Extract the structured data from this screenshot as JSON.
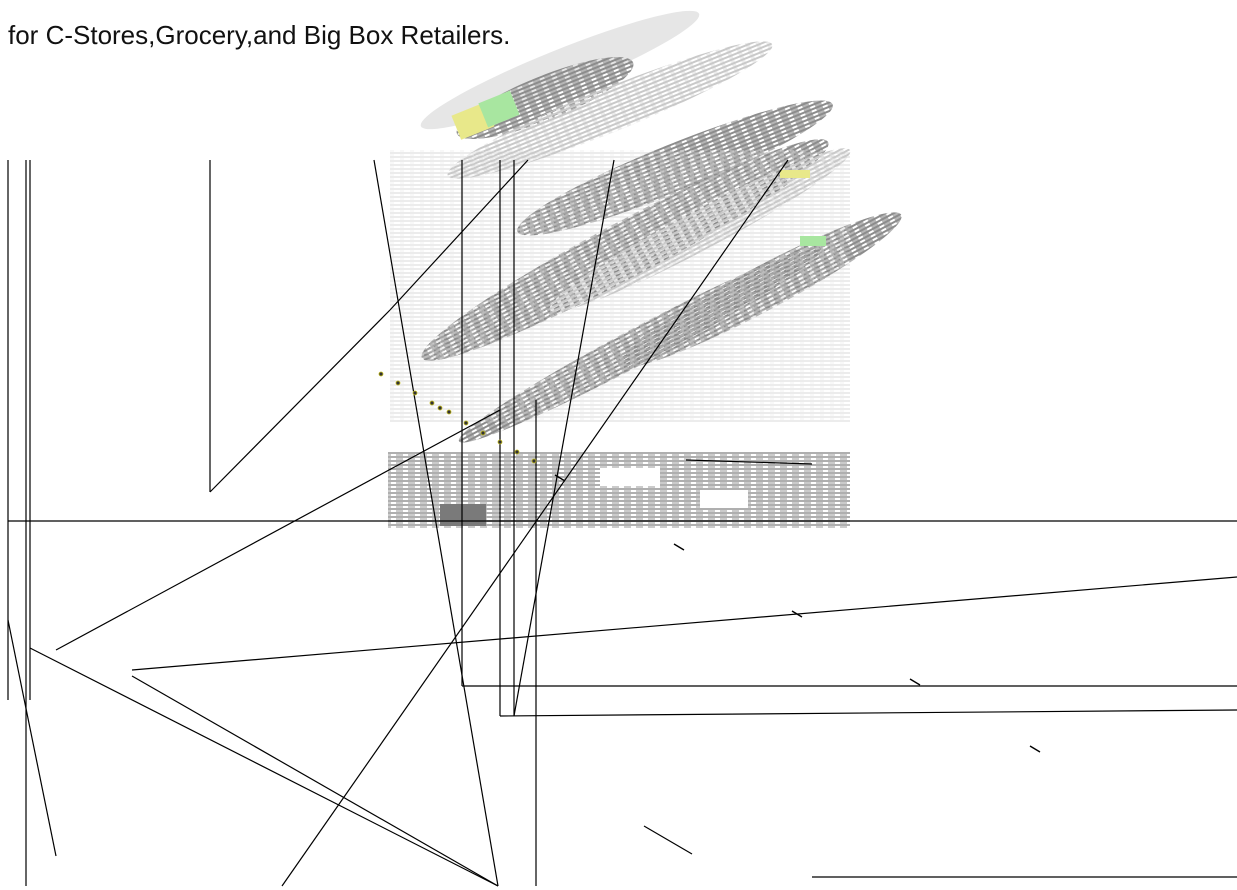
{
  "header": {
    "tagline": "for C-Stores,Grocery,and Big Box Retailers."
  },
  "artwork": {
    "logo_icon": "striped-swoosh-logo-icon",
    "line_color": "#000000",
    "swoosh_color": "#8c8c8c",
    "accent_green": "#a8e6a0",
    "accent_yellow": "#e8e88a"
  }
}
